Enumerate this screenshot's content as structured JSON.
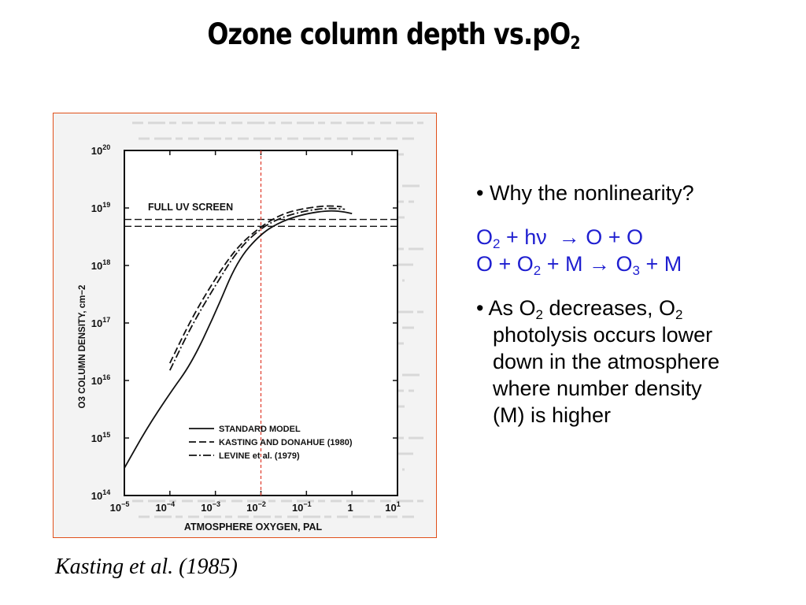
{
  "slide": {
    "title_main": "Ozone column depth vs.pO",
    "title_sub": "2",
    "caption": "Kasting et al. (1985)"
  },
  "bullets": {
    "b1": "• Why the nonlinearity?",
    "r1": {
      "a": "O",
      "a_sub": "2",
      "b": " + h",
      "nu": "ν",
      "arrow": "  → O + O"
    },
    "r2": {
      "a": "O + O",
      "a_sub": "2",
      "b": " + M → O",
      "b_sub": "3",
      "c": " + M"
    },
    "b2_l1_a": "• As O",
    "b2_l1_sub1": "2",
    "b2_l1_b": " decreases, O",
    "b2_l1_sub2": "2",
    "b2_l2": "photolysis occurs lower",
    "b2_l3": "down in the atmosphere",
    "b2_l4": "where number density",
    "b2_l5": "(M) is higher",
    "colors": {
      "reaction": "#1f1fd0"
    }
  },
  "chart_data": {
    "type": "line",
    "title": "",
    "xlabel": "ATMOSPHERE OXYGEN, PAL",
    "ylabel": "O3 COLUMN DENSITY, cm−2",
    "x_scale": "log",
    "y_scale": "log",
    "xlim": [
      1e-05,
      10
    ],
    "ylim": [
      100000000000000.0,
      1e+20
    ],
    "x_ticks": [
      {
        "v": -5,
        "base": "10",
        "exp": "−5"
      },
      {
        "v": -4,
        "base": "10",
        "exp": "−4"
      },
      {
        "v": -3,
        "base": "10",
        "exp": "−3"
      },
      {
        "v": -2,
        "base": "10",
        "exp": "−2"
      },
      {
        "v": -1,
        "base": "10",
        "exp": "−1"
      },
      {
        "v": 0,
        "base": "1",
        "exp": ""
      },
      {
        "v": 1,
        "base": "10",
        "exp": "1"
      }
    ],
    "y_ticks": [
      {
        "v": 14,
        "base": "10",
        "exp": "14"
      },
      {
        "v": 15,
        "base": "10",
        "exp": "15"
      },
      {
        "v": 16,
        "base": "10",
        "exp": "16"
      },
      {
        "v": 17,
        "base": "10",
        "exp": "17"
      },
      {
        "v": 18,
        "base": "10",
        "exp": "18"
      },
      {
        "v": 19,
        "base": "10",
        "exp": "19"
      },
      {
        "v": 20,
        "base": "10",
        "exp": "20"
      }
    ],
    "annotation": "FULL UV SCREEN",
    "reference_lines_y": [
      18.8,
      18.68
    ],
    "marker_x": 0.01,
    "series": [
      {
        "name": "STANDARD MODEL",
        "style": "solid",
        "x": [
          1e-05,
          3e-05,
          0.0001,
          0.0003,
          0.001,
          0.003,
          0.01,
          0.03,
          0.1,
          0.3,
          0.6,
          1
        ],
        "y": [
          300000000000000.0,
          1400000000000000.0,
          6000000000000000.0,
          2e+16,
          1.5e+17,
          1.2e+18,
          3.6e+18,
          6e+18,
          8e+18,
          9e+18,
          8.7e+18,
          8e+18
        ]
      },
      {
        "name": "KASTING AND DONAHUE (1980)",
        "style": "dashed",
        "x": [
          0.0001,
          0.0003,
          0.001,
          0.003,
          0.01,
          0.03,
          0.1,
          0.3,
          0.6
        ],
        "y": [
          2e+16,
          1.2e+17,
          6e+17,
          2.1e+18,
          4.8e+18,
          8e+18,
          1e+19,
          1.1e+19,
          1.05e+19
        ]
      },
      {
        "name": "LEVINE et al. (1979)",
        "style": "dashdot",
        "x": [
          0.0001,
          0.0003,
          0.001,
          0.003,
          0.01,
          0.03,
          0.1,
          0.3,
          0.7
        ],
        "y": [
          1.5e+16,
          9e+16,
          4.5e+17,
          1.8e+18,
          4.5e+18,
          7e+18,
          9e+18,
          1e+19,
          9.5e+18
        ]
      }
    ],
    "legend": {
      "placement": "bottom-right",
      "items": [
        "STANDARD MODEL",
        "KASTING AND DONAHUE (1980)",
        "LEVINE et al. (1979)"
      ]
    }
  }
}
